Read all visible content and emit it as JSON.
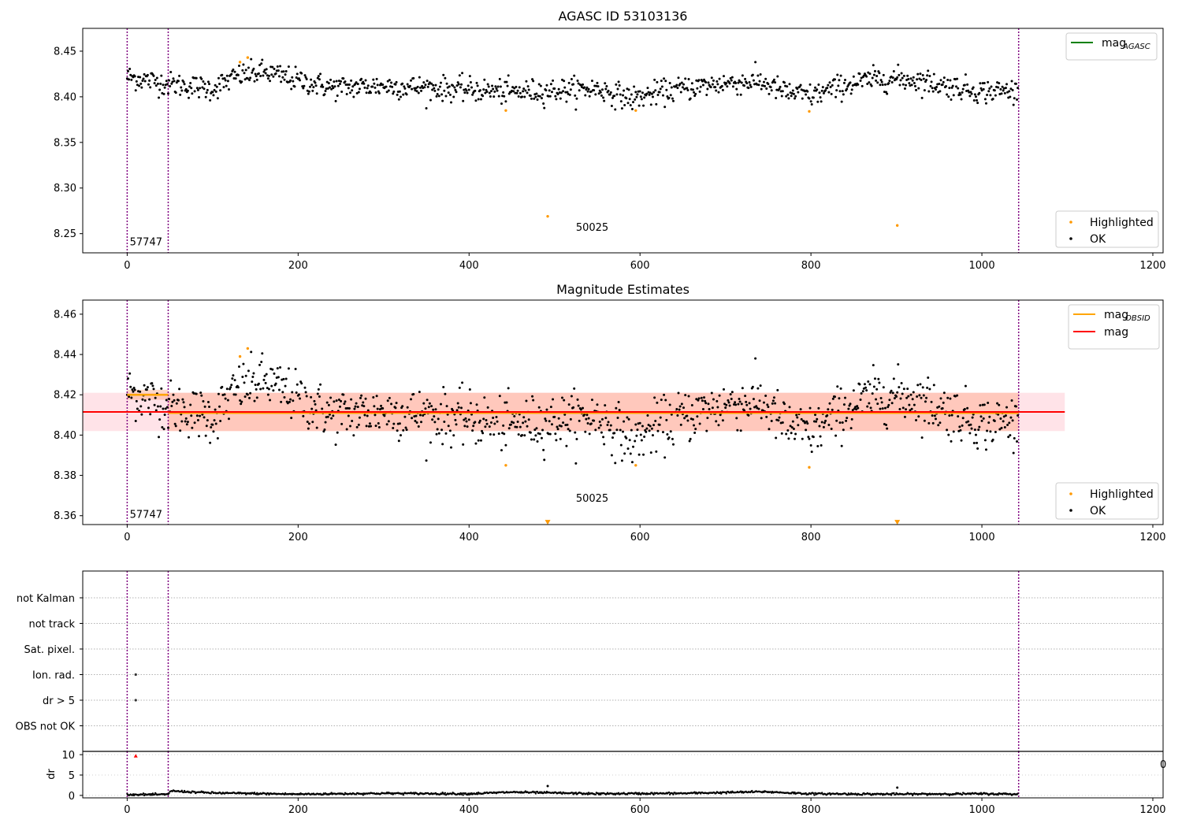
{
  "colors": {
    "ok": "#000000",
    "highlighted": "#ff9900",
    "mag_line": "#ff0000",
    "mag_obsid_line": "#ffa500",
    "mag_agasc_line": "#008000",
    "vline": "#800080",
    "band_red": "#ffc0cb",
    "band_orange": "#ffa07a",
    "flag_point": "#333333",
    "dr_highlight": "#ff0000"
  },
  "chart_data": [
    {
      "id": "agasc",
      "type": "scatter",
      "title": "AGASC ID 53103136",
      "xlim": [
        -52,
        1212
      ],
      "ylim": [
        8.229,
        8.475
      ],
      "xticks": [
        0,
        200,
        400,
        600,
        800,
        1000,
        1200
      ],
      "yticks": [
        8.25,
        8.3,
        8.35,
        8.4,
        8.45
      ],
      "xtick_labels": [
        "0",
        "200",
        "400",
        "600",
        "800",
        "1000",
        "1200"
      ],
      "ytick_labels": [
        "8.25",
        "8.30",
        "8.35",
        "8.40",
        "8.45"
      ],
      "vlines": [
        0,
        48,
        1043
      ],
      "annotations": [
        {
          "text": "57747",
          "x": 3,
          "y": 8.237
        },
        {
          "text": "50025",
          "x": 525,
          "y": 8.253
        }
      ],
      "legend_upper": [
        {
          "label": "mag",
          "sub": "AGASC",
          "color": "#008000"
        }
      ],
      "legend_lower": [
        {
          "label": "Highlighted",
          "color": "#ff9900"
        },
        {
          "label": "OK",
          "color": "#000000"
        }
      ],
      "n_ok": 1043,
      "highlighted": [
        {
          "x": 132,
          "y": 8.438
        },
        {
          "x": 141,
          "y": 8.443
        },
        {
          "x": 443,
          "y": 8.385
        },
        {
          "x": 492,
          "y": 8.269
        },
        {
          "x": 595,
          "y": 8.385
        },
        {
          "x": 798,
          "y": 8.384
        },
        {
          "x": 901,
          "y": 8.259
        }
      ],
      "trend": [
        [
          0,
          8.422
        ],
        [
          50,
          8.414
        ],
        [
          100,
          8.409
        ],
        [
          130,
          8.423
        ],
        [
          160,
          8.427
        ],
        [
          200,
          8.418
        ],
        [
          240,
          8.41
        ],
        [
          300,
          8.412
        ],
        [
          350,
          8.41
        ],
        [
          400,
          8.408
        ],
        [
          450,
          8.405
        ],
        [
          500,
          8.407
        ],
        [
          550,
          8.409
        ],
        [
          590,
          8.398
        ],
        [
          620,
          8.404
        ],
        [
          650,
          8.409
        ],
        [
          700,
          8.415
        ],
        [
          740,
          8.417
        ],
        [
          770,
          8.405
        ],
        [
          800,
          8.401
        ],
        [
          840,
          8.413
        ],
        [
          880,
          8.42
        ],
        [
          920,
          8.419
        ],
        [
          960,
          8.412
        ],
        [
          1000,
          8.406
        ],
        [
          1043,
          8.407
        ]
      ],
      "noise": 0.0065
    },
    {
      "id": "estimates",
      "type": "scatter",
      "title": "Magnitude Estimates",
      "xlim": [
        -52,
        1212
      ],
      "ylim": [
        8.3556,
        8.467
      ],
      "xticks": [
        0,
        200,
        400,
        600,
        800,
        1000,
        1200
      ],
      "yticks": [
        8.36,
        8.38,
        8.4,
        8.42,
        8.44,
        8.46
      ],
      "xtick_labels": [
        "0",
        "200",
        "400",
        "600",
        "800",
        "1000",
        "1200"
      ],
      "ytick_labels": [
        "8.36",
        "8.38",
        "8.40",
        "8.42",
        "8.44",
        "8.46"
      ],
      "vlines": [
        0,
        48,
        1043
      ],
      "annotations": [
        {
          "text": "57747",
          "x": 3,
          "y": 8.359
        },
        {
          "text": "50025",
          "x": 525,
          "y": 8.367
        }
      ],
      "legend_upper": [
        {
          "label": "mag",
          "sub": "OBSID",
          "color": "#ffa500"
        },
        {
          "label": "mag",
          "sub": "",
          "color": "#ff0000"
        }
      ],
      "legend_lower": [
        {
          "label": "Highlighted",
          "color": "#ff9900"
        },
        {
          "label": "OK",
          "color": "#000000"
        }
      ],
      "mag": 8.4115,
      "mag_band": [
        8.402,
        8.421
      ],
      "mag_band_x": [
        -52,
        1097
      ],
      "obsid_segments": [
        {
          "x": [
            0,
            48
          ],
          "mag": 8.42,
          "band": [
            8.4175,
            8.4225
          ]
        },
        {
          "x": [
            48,
            1043
          ],
          "mag": 8.411,
          "band": [
            8.402,
            8.421
          ]
        }
      ],
      "highlighted": [
        {
          "x": 132,
          "y": 8.439
        },
        {
          "x": 141,
          "y": 8.443
        },
        {
          "x": 443,
          "y": 8.385
        },
        {
          "x": 595,
          "y": 8.385
        },
        {
          "x": 798,
          "y": 8.384
        }
      ],
      "off_axis_markers": [
        {
          "x": 492,
          "y": 8.3567
        },
        {
          "x": 901,
          "y": 8.3567
        }
      ]
    },
    {
      "id": "flags",
      "type": "scatter",
      "xlim": [
        -52,
        1212
      ],
      "row_labels": [
        "not Kalman",
        "not track",
        "Sat. pixel.",
        "Ion. rad.",
        "dr > 5",
        "OBS not OK"
      ],
      "flag_points": [
        {
          "row": "Ion. rad.",
          "x": 10
        },
        {
          "row": "dr > 5",
          "x": 10
        }
      ],
      "vlines": [
        0,
        48,
        1043
      ]
    },
    {
      "id": "dr",
      "type": "scatter",
      "xlim": [
        -52,
        1212
      ],
      "ylim": [
        -0.6,
        10.8
      ],
      "ylabel": "dr",
      "yticks": [
        0,
        5,
        10
      ],
      "ytick_labels": [
        "0",
        "5",
        "10"
      ],
      "xticks": [
        0,
        200,
        400,
        600,
        800,
        1000,
        1200
      ],
      "xtick_labels": [
        "0",
        "200",
        "400",
        "600",
        "800",
        "1000",
        "1200"
      ],
      "vlines": [
        0,
        48,
        1043
      ],
      "overflow_label": "0",
      "highlighted": [
        {
          "x": 10,
          "y": 9.7
        }
      ],
      "outliers": [
        {
          "x": 492,
          "y": 2.3
        },
        {
          "x": 901,
          "y": 1.9
        }
      ],
      "baseline": [
        [
          0,
          0.2
        ],
        [
          48,
          0.2
        ],
        [
          50,
          1.1
        ],
        [
          100,
          0.6
        ],
        [
          200,
          0.3
        ],
        [
          300,
          0.5
        ],
        [
          400,
          0.4
        ],
        [
          450,
          0.8
        ],
        [
          550,
          0.4
        ],
        [
          650,
          0.5
        ],
        [
          745,
          0.9
        ],
        [
          800,
          0.4
        ],
        [
          900,
          0.3
        ],
        [
          1000,
          0.4
        ],
        [
          1043,
          0.3
        ]
      ]
    }
  ]
}
